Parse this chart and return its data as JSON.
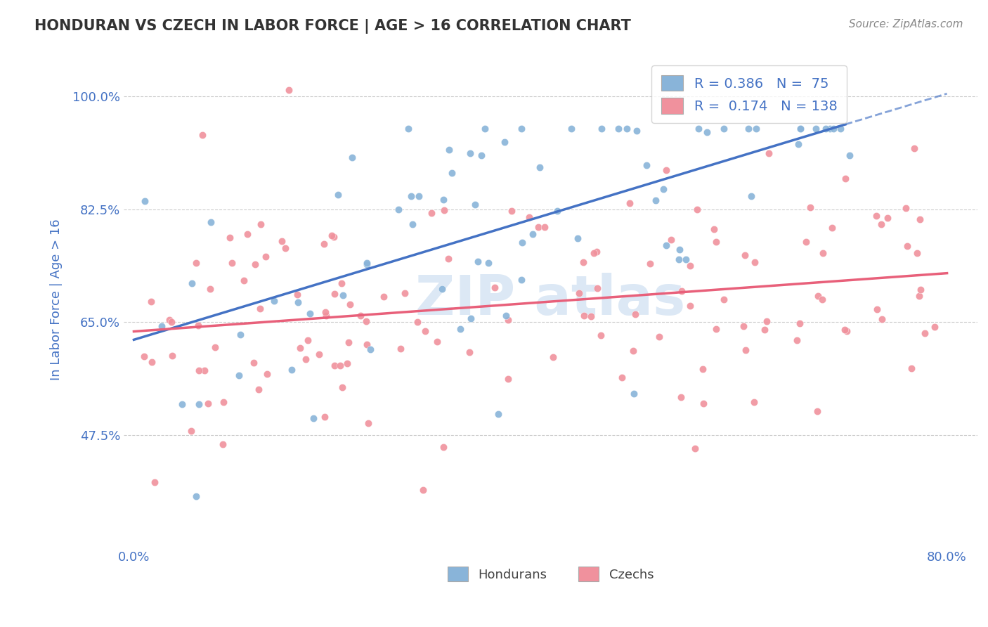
{
  "title": "HONDURAN VS CZECH IN LABOR FORCE | AGE > 16 CORRELATION CHART",
  "source": "Source: ZipAtlas.com",
  "ylabel": "In Labor Force | Age > 16",
  "xlim": [
    -0.01,
    0.83
  ],
  "ylim": [
    0.3,
    1.07
  ],
  "yticks": [
    0.475,
    0.65,
    0.825,
    1.0
  ],
  "yticklabels": [
    "47.5%",
    "65.0%",
    "82.5%",
    "100.0%"
  ],
  "xtick_left": "0.0%",
  "xtick_right": "80.0%",
  "honduran_R": 0.386,
  "honduran_N": 75,
  "czech_R": 0.174,
  "czech_N": 138,
  "blue_color": "#89b4d9",
  "pink_color": "#f0919d",
  "blue_line_color": "#4472c4",
  "pink_line_color": "#e8607a",
  "background_color": "#ffffff",
  "title_color": "#333333",
  "axis_label_color": "#4472c4",
  "tick_label_color": "#4472c4",
  "grid_color": "#cccccc",
  "watermark_color": "#dce8f5",
  "legend_text_color": "#4472c4",
  "legend_label_R1": "R = 0.386   N =  75",
  "legend_label_R2": "R =  0.174   N = 138",
  "legend_label_blue": "Hondurans",
  "legend_label_pink": "Czechs"
}
